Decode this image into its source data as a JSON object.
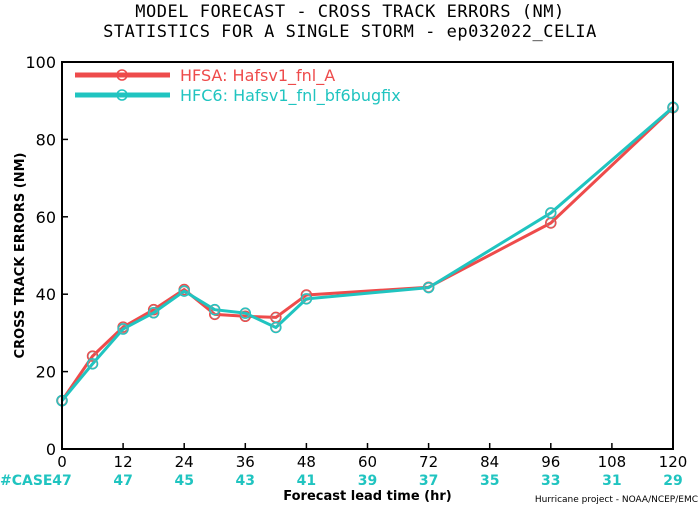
{
  "chart_data": {
    "type": "line",
    "title_line1": "MODEL FORECAST - CROSS TRACK ERRORS (NM)",
    "title_line2": "STATISTICS FOR A SINGLE STORM - ep032022_CELIA",
    "xlabel": "Forecast lead time (hr)",
    "ylabel": "CROSS TRACK ERRORS (NM)",
    "xlim": [
      0,
      120
    ],
    "ylim": [
      0,
      100
    ],
    "xticks": [
      0,
      12,
      24,
      36,
      48,
      60,
      72,
      84,
      96,
      108,
      120
    ],
    "yticks": [
      0,
      20,
      40,
      60,
      80,
      100
    ],
    "legend_position": "top-left",
    "series": [
      {
        "name": "HFSA: Hafsv1_fnl_A",
        "color": "#ee4b4b",
        "x": [
          0,
          6,
          12,
          18,
          24,
          30,
          36,
          42,
          48,
          72,
          96,
          120
        ],
        "y": [
          12.5,
          24,
          31.5,
          36,
          41.2,
          34.8,
          34.3,
          34,
          39.8,
          41.8,
          58.4,
          88.2
        ]
      },
      {
        "name": "HFC6: Hafsv1_fnl_bf6bugfix",
        "color": "#20c4c0",
        "x": [
          0,
          6,
          12,
          18,
          24,
          30,
          36,
          42,
          48,
          72,
          96,
          120
        ],
        "y": [
          12.5,
          22,
          31,
          35.2,
          40.8,
          36,
          35.1,
          31.4,
          38.8,
          41.7,
          61,
          88.3
        ]
      }
    ],
    "case_label": "#CASE",
    "case_color": "#20c4c0",
    "case_x": [
      0,
      12,
      24,
      36,
      48,
      60,
      72,
      84,
      96,
      108,
      120
    ],
    "case_counts": [
      "47",
      "47",
      "45",
      "43",
      "41",
      "39",
      "37",
      "35",
      "33",
      "31",
      "29"
    ],
    "credit": "Hurricane project - NOAA/NCEP/EMC"
  }
}
